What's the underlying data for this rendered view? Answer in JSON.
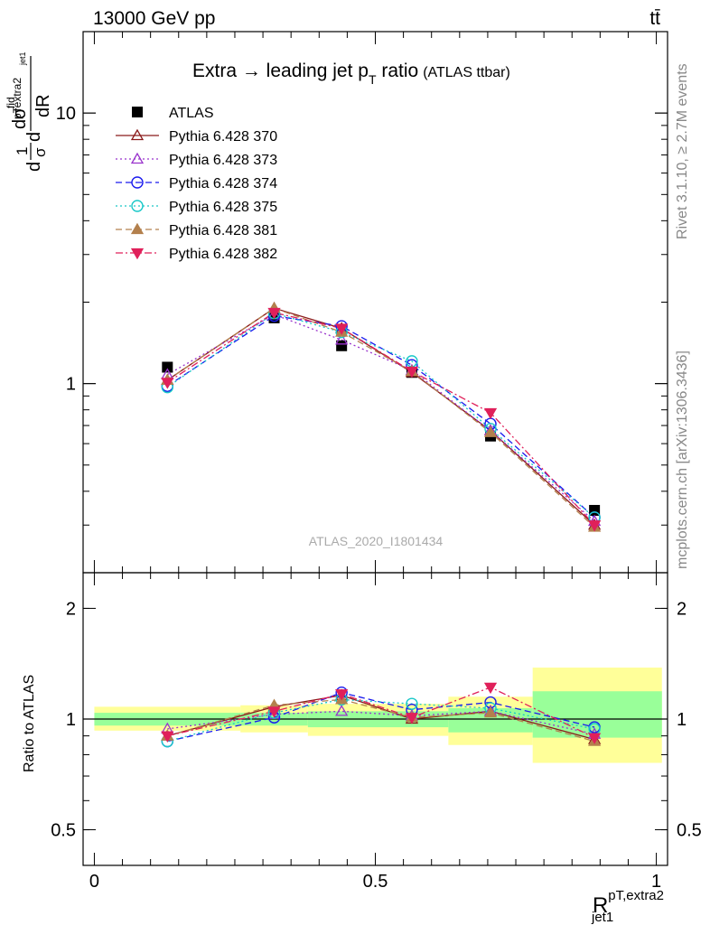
{
  "header": {
    "left_label": "13000 GeV pp",
    "right_label": "tt̄"
  },
  "side_labels": {
    "rivet": "Rivet 3.1.10, ≥ 2.7M events",
    "source": "mcplots.cern.ch [arXiv:1306.3436]"
  },
  "chart_data": [
    {
      "type": "line",
      "title": "Extra → leading jet p",
      "title_sub": "T",
      "title_rest": " ratio",
      "title_note": "(ATLAS ttbar)",
      "ylabel_main": "dσ",
      "ylabel_sup": "fid",
      "ylabel_sub": "pTextra2",
      "ylabel_sub2": "jet1",
      "ylabel_prefix": "1",
      "ylabel_prefix_den": "σ",
      "ylabel_den": "dR",
      "analysis_tag": "ATLAS_2020_I1801434",
      "y_scale": "log",
      "ylim": [
        0.2,
        20
      ],
      "xlim": [
        -0.02,
        1.02
      ],
      "yticks_labeled": [
        {
          "value": 1,
          "label": "1"
        },
        {
          "value": 10,
          "label": "10"
        }
      ],
      "x": [
        0.13,
        0.32,
        0.44,
        0.565,
        0.705,
        0.89
      ],
      "legend_placement": "top-left",
      "series": [
        {
          "name": "ATLAS",
          "color": "#000000",
          "marker": "square-filled",
          "dash": "none",
          "values": [
            1.15,
            1.75,
            1.38,
            1.1,
            0.64,
            0.34
          ]
        },
        {
          "name": "Pythia 6.428 370",
          "color": "#8b1a1a",
          "marker": "triangle-open",
          "dash": "solid",
          "values": [
            1.03,
            1.9,
            1.6,
            1.1,
            0.67,
            0.3
          ]
        },
        {
          "name": "Pythia 6.428 373",
          "color": "#9933cc",
          "marker": "triangle-open",
          "dash": "dotted",
          "values": [
            1.08,
            1.8,
            1.45,
            1.12,
            0.67,
            0.31
          ]
        },
        {
          "name": "Pythia 6.428 374",
          "color": "#1a1aee",
          "marker": "circle-open",
          "dash": "dashed",
          "values": [
            0.98,
            1.78,
            1.63,
            1.17,
            0.71,
            0.32
          ]
        },
        {
          "name": "Pythia 6.428 375",
          "color": "#19c8c8",
          "marker": "circle-open",
          "dash": "dotted",
          "values": [
            0.97,
            1.82,
            1.55,
            1.21,
            0.68,
            0.32
          ]
        },
        {
          "name": "Pythia 6.428 381",
          "color": "#b3804d",
          "marker": "triangle-filled",
          "dash": "dashed",
          "values": [
            1.03,
            1.9,
            1.55,
            1.11,
            0.66,
            0.295
          ]
        },
        {
          "name": "Pythia 6.428 382",
          "color": "#e0205a",
          "marker": "triangle-down-filled",
          "dash": "dashdot",
          "values": [
            1.01,
            1.83,
            1.6,
            1.11,
            0.78,
            0.3
          ]
        }
      ]
    },
    {
      "type": "line",
      "ylabel": "Ratio to ATLAS",
      "xlabel_main": "R",
      "xlabel_sup": "pT,extra2",
      "xlabel_sub": "jet1",
      "y_scale": "log",
      "ylim": [
        0.4,
        2.5
      ],
      "xlim": [
        -0.02,
        1.02
      ],
      "yticks_labeled": [
        {
          "value": 0.5,
          "label": "0.5"
        },
        {
          "value": 1,
          "label": "1"
        },
        {
          "value": 2,
          "label": "2"
        }
      ],
      "xticks_labeled": [
        {
          "value": 0,
          "label": "0"
        },
        {
          "value": 0.5,
          "label": "0.5"
        },
        {
          "value": 1,
          "label": "1"
        }
      ],
      "bands": [
        {
          "x0": 0.0,
          "x1": 0.26,
          "yellow": [
            0.93,
            1.08
          ],
          "green": [
            0.96,
            1.04
          ]
        },
        {
          "x0": 0.26,
          "x1": 0.38,
          "yellow": [
            0.92,
            1.09
          ],
          "green": [
            0.96,
            1.04
          ]
        },
        {
          "x0": 0.38,
          "x1": 0.5,
          "yellow": [
            0.9,
            1.1
          ],
          "green": [
            0.95,
            1.05
          ]
        },
        {
          "x0": 0.5,
          "x1": 0.63,
          "yellow": [
            0.9,
            1.1
          ],
          "green": [
            0.95,
            1.05
          ]
        },
        {
          "x0": 0.63,
          "x1": 0.78,
          "yellow": [
            0.85,
            1.15
          ],
          "green": [
            0.92,
            1.07
          ]
        },
        {
          "x0": 0.78,
          "x1": 1.01,
          "yellow": [
            0.76,
            1.38
          ],
          "green": [
            0.89,
            1.19
          ]
        }
      ],
      "x": [
        0.13,
        0.32,
        0.44,
        0.565,
        0.705,
        0.89
      ],
      "series": [
        {
          "name": "Pythia 6.428 370",
          "color": "#8b1a1a",
          "marker": "triangle-open",
          "dash": "solid",
          "values": [
            0.9,
            1.08,
            1.16,
            1.0,
            1.05,
            0.88
          ]
        },
        {
          "name": "Pythia 6.428 373",
          "color": "#9933cc",
          "marker": "triangle-open",
          "dash": "dotted",
          "values": [
            0.94,
            1.03,
            1.05,
            1.02,
            1.05,
            0.91
          ]
        },
        {
          "name": "Pythia 6.428 374",
          "color": "#1a1aee",
          "marker": "circle-open",
          "dash": "dashed",
          "values": [
            0.87,
            1.01,
            1.18,
            1.06,
            1.11,
            0.95
          ]
        },
        {
          "name": "Pythia 6.428 375",
          "color": "#19c8c8",
          "marker": "circle-open",
          "dash": "dotted",
          "values": [
            0.87,
            1.04,
            1.13,
            1.1,
            1.07,
            0.94
          ]
        },
        {
          "name": "Pythia 6.428 381",
          "color": "#b3804d",
          "marker": "triangle-filled",
          "dash": "dashed",
          "values": [
            0.9,
            1.09,
            1.13,
            1.01,
            1.04,
            0.87
          ]
        },
        {
          "name": "Pythia 6.428 382",
          "color": "#e0205a",
          "marker": "triangle-down-filled",
          "dash": "dashdot",
          "values": [
            0.9,
            1.05,
            1.17,
            1.01,
            1.22,
            0.89
          ]
        }
      ]
    }
  ]
}
